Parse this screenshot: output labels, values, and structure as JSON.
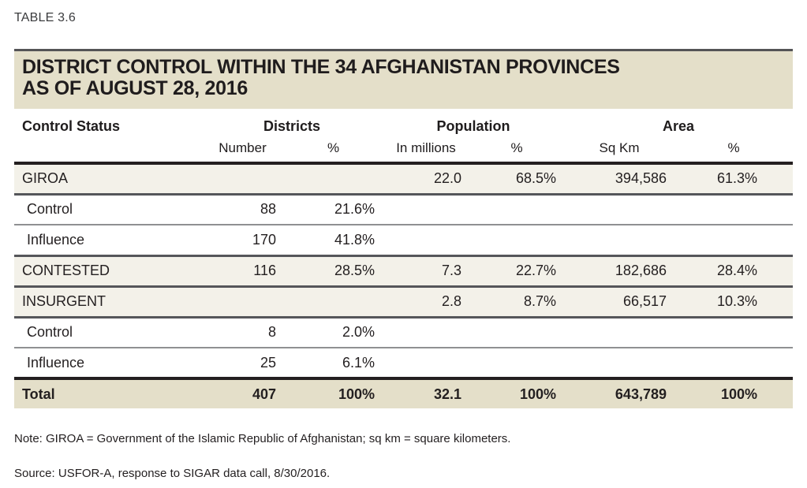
{
  "table_label": "TABLE 3.6",
  "title": {
    "line1": "DISTRICT CONTROL WITHIN THE 34 AFGHANISTAN PROVINCES",
    "line2": "AS OF AUGUST 28, 2016"
  },
  "header": {
    "control_status": "Control Status",
    "groups": [
      {
        "label": "Districts",
        "sub": [
          "Number",
          "%"
        ]
      },
      {
        "label": "Population",
        "sub": [
          "In millions",
          "%"
        ]
      },
      {
        "label": "Area",
        "sub": [
          "Sq Km",
          "%"
        ]
      }
    ]
  },
  "rows": [
    {
      "label": "GIROA",
      "emphasis": "shaded",
      "indent": false,
      "cells": [
        "",
        "",
        "22.0",
        "68.5%",
        "394,586",
        "61.3%"
      ]
    },
    {
      "label": "Control",
      "emphasis": "plain",
      "indent": true,
      "cells": [
        "88",
        "21.6%",
        "",
        "",
        "",
        ""
      ]
    },
    {
      "label": "Influence",
      "emphasis": "plain",
      "indent": true,
      "cells": [
        "170",
        "41.8%",
        "",
        "",
        "",
        ""
      ]
    },
    {
      "label": "CONTESTED",
      "emphasis": "shaded",
      "indent": false,
      "cells": [
        "116",
        "28.5%",
        "7.3",
        "22.7%",
        "182,686",
        "28.4%"
      ]
    },
    {
      "label": "INSURGENT",
      "emphasis": "shaded",
      "indent": false,
      "cells": [
        "",
        "",
        "2.8",
        "8.7%",
        "66,517",
        "10.3%"
      ]
    },
    {
      "label": "Control",
      "emphasis": "plain",
      "indent": true,
      "cells": [
        "8",
        "2.0%",
        "",
        "",
        "",
        ""
      ]
    },
    {
      "label": "Influence",
      "emphasis": "plain",
      "indent": true,
      "cells": [
        "25",
        "6.1%",
        "",
        "",
        "",
        ""
      ]
    },
    {
      "label": "Total",
      "emphasis": "total",
      "indent": false,
      "cells": [
        "407",
        "100%",
        "32.1",
        "100%",
        "643,789",
        "100%"
      ]
    }
  ],
  "note": "Note: GIROA = Government of the Islamic Republic of Afghanistan; sq km = square kilometers.",
  "source": "Source: USFOR-A, response to SIGAR data call, 8/30/2016.",
  "colors": {
    "title_bar_bg": "#e4dfc9",
    "shaded_row_bg": "#f3f1e9",
    "total_row_bg": "#e4dfc9",
    "text": "#231f20",
    "rule_black": "#231f20",
    "rule_gray": "#55565a",
    "rule_light_gray": "#8f9092"
  }
}
